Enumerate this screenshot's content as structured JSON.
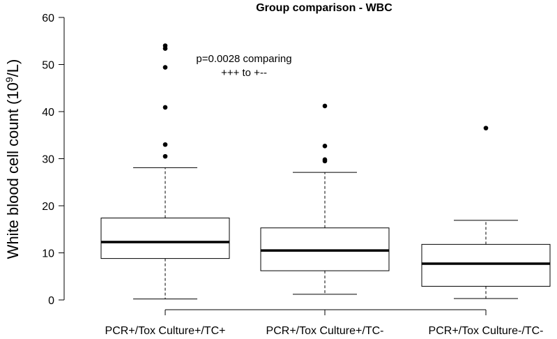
{
  "chart_data": {
    "type": "boxplot",
    "title": "Group comparison - WBC",
    "ylabel": "White blood cell count (10",
    "ylabel_sup": "9",
    "ylabel_suffix": "/L)",
    "xlabel": "",
    "ylim": [
      0,
      60
    ],
    "yticks": [
      0,
      10,
      20,
      30,
      40,
      50,
      60
    ],
    "grid": false,
    "categories": [
      "PCR+/Tox Culture+/TC+",
      "PCR+/Tox Culture+/TC-",
      "PCR+/Tox Culture-/TC-"
    ],
    "boxes": [
      {
        "whisker_low": 0.2,
        "q1": 8.8,
        "median": 12.3,
        "q3": 17.4,
        "whisker_high": 28.1,
        "outliers": [
          30.5,
          33.0,
          40.9,
          49.4,
          53.4,
          54.0
        ]
      },
      {
        "whisker_low": 1.2,
        "q1": 6.2,
        "median": 10.5,
        "q3": 15.3,
        "whisker_high": 27.1,
        "outliers": [
          29.5,
          29.8,
          32.7,
          41.2
        ]
      },
      {
        "whisker_low": 0.3,
        "q1": 2.9,
        "median": 7.7,
        "q3": 11.8,
        "whisker_high": 16.9,
        "outliers": [
          36.5
        ]
      }
    ],
    "annotation": {
      "line1": "p=0.0028 comparing",
      "line2": "+++ to +--"
    }
  }
}
